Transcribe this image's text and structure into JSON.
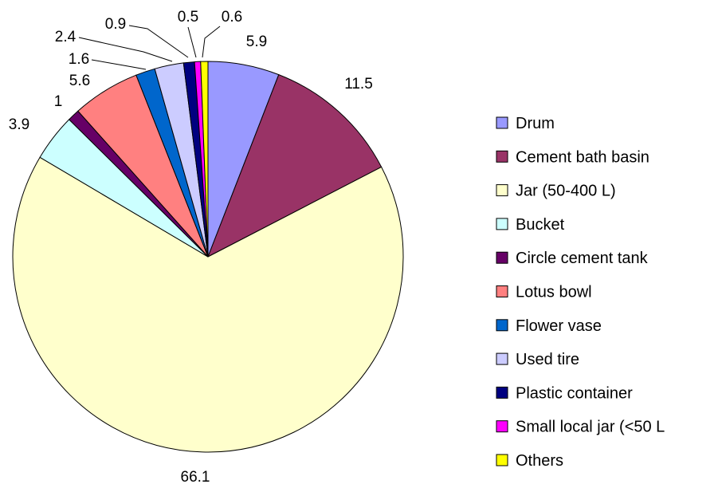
{
  "chart_data": {
    "type": "pie",
    "title": "",
    "start_angle_deg": 0,
    "direction": "clockwise",
    "legend_position": "right",
    "slices": [
      {
        "label": "Drum",
        "value": 5.9,
        "value_label": "5.9",
        "color": "#9999FF"
      },
      {
        "label": "Cement bath basin",
        "value": 11.5,
        "value_label": "11.5",
        "color": "#993366"
      },
      {
        "label": "Jar (50-400 L)",
        "value": 66.1,
        "value_label": "66.1",
        "color": "#FFFFCC"
      },
      {
        "label": "Bucket",
        "value": 3.9,
        "value_label": "3.9",
        "color": "#CCFFFF"
      },
      {
        "label": "Circle cement tank",
        "value": 1,
        "value_label": "1",
        "color": "#660066"
      },
      {
        "label": "Lotus bowl",
        "value": 5.6,
        "value_label": "5.6",
        "color": "#FF8080"
      },
      {
        "label": "Flower vase",
        "value": 1.6,
        "value_label": "1.6",
        "color": "#0066CC"
      },
      {
        "label": "Used tire",
        "value": 2.4,
        "value_label": "2.4",
        "color": "#CCCCFF"
      },
      {
        "label": "Plastic container",
        "value": 0.9,
        "value_label": "0.9",
        "color": "#000080"
      },
      {
        "label": "Small local jar (<50 L",
        "value": 0.5,
        "value_label": "0.5",
        "color": "#FF00FF"
      },
      {
        "label": "Others",
        "value": 0.6,
        "value_label": "0.6",
        "color": "#FFFF00"
      }
    ]
  }
}
